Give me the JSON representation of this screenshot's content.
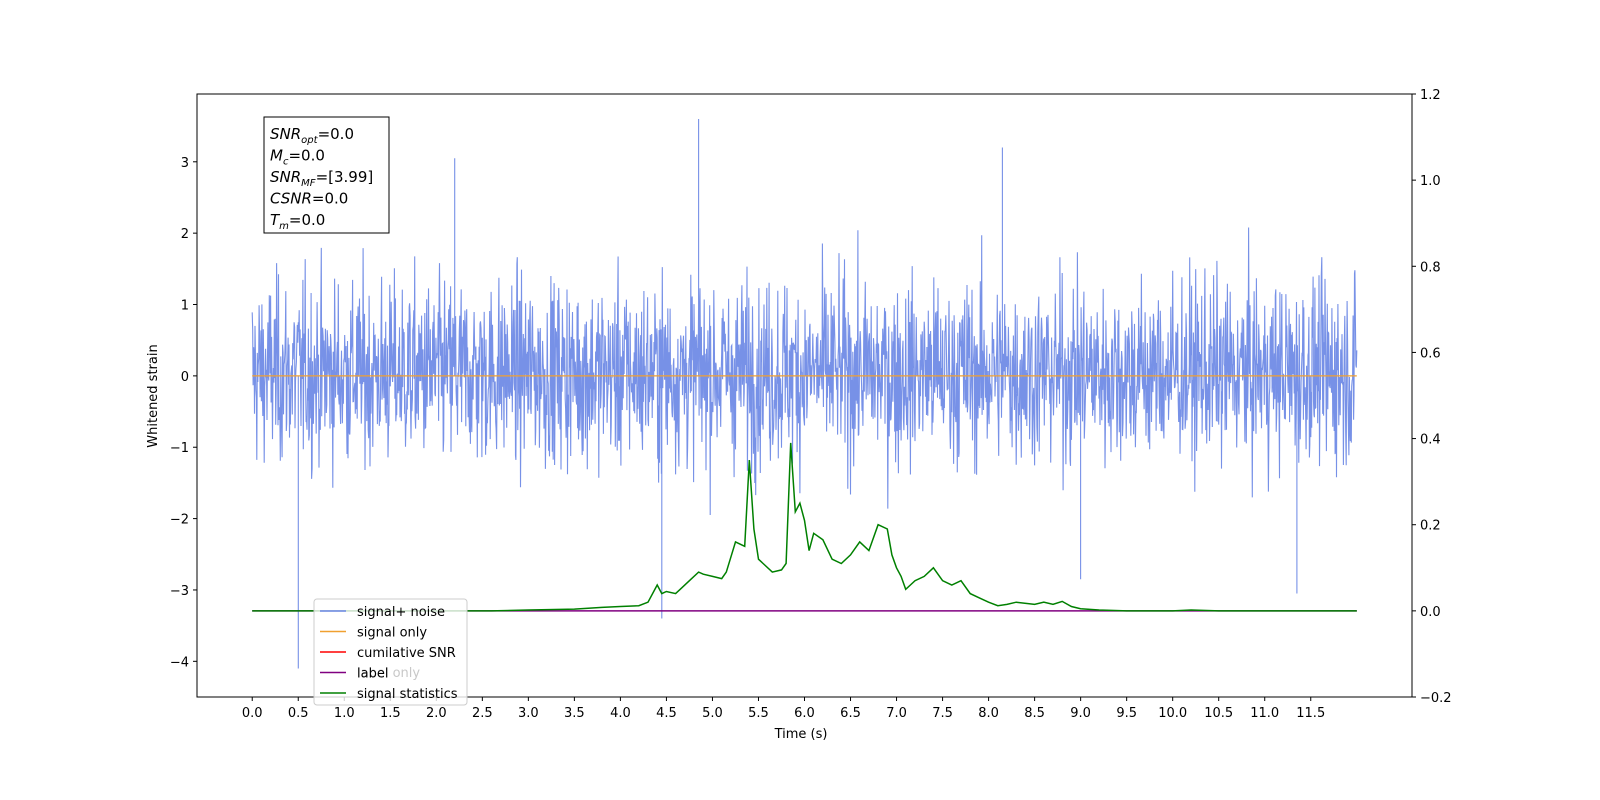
{
  "chart_data": {
    "type": "line",
    "xlabel": "Time (s)",
    "ylabel": "Whitened strain",
    "xlim": [
      -0.6,
      12.6
    ],
    "ylim": [
      -4.5,
      3.95
    ],
    "y2lim": [
      -0.2,
      1.2
    ],
    "xticks": [
      "0.0",
      "0.5",
      "1.0",
      "1.5",
      "2.0",
      "2.5",
      "3.0",
      "3.5",
      "4.0",
      "4.5",
      "5.0",
      "5.5",
      "6.0",
      "6.5",
      "7.0",
      "7.5",
      "8.0",
      "8.5",
      "9.0",
      "9.5",
      "10.0",
      "10.5",
      "11.0",
      "11.5"
    ],
    "yticks": [
      "−4",
      "−3",
      "−2",
      "−1",
      "0",
      "1",
      "2",
      "3"
    ],
    "y2ticks": [
      "−0.2",
      "0.0",
      "0.2",
      "0.4",
      "0.6",
      "0.8",
      "1.0",
      "1.2"
    ],
    "grid": false,
    "legend_position": "lower-left",
    "colors": {
      "signal_noise": "#6b88e5",
      "signal_only": "#f0a030",
      "cumulative_snr": "#ff0000",
      "label": "#800080",
      "signal_statistics": "#008000"
    },
    "noise_trace": {
      "x_range": [
        0.0,
        12.0
      ],
      "typical_range": [
        -1.4,
        1.6
      ],
      "extremes": [
        {
          "x": 0.5,
          "y": -4.1
        },
        {
          "x": 4.45,
          "y": -3.4
        },
        {
          "x": 4.85,
          "y": 3.6
        },
        {
          "x": 2.2,
          "y": 3.05
        },
        {
          "x": 8.15,
          "y": 3.2
        },
        {
          "x": 11.35,
          "y": -3.05
        },
        {
          "x": 9.0,
          "y": -2.85
        }
      ]
    },
    "series": [
      {
        "name": "signal+ noise",
        "kind": "noise_trace"
      },
      {
        "name": "signal only",
        "x": [
          0.0,
          12.0
        ],
        "y": [
          0.0,
          0.0
        ]
      },
      {
        "name": "cumilative SNR",
        "x": [],
        "y": []
      },
      {
        "name": "label",
        "axis": "right",
        "x": [
          0.0,
          12.0
        ],
        "y": [
          0.0,
          0.0
        ]
      },
      {
        "name": "signal statistics",
        "axis": "right",
        "x": [
          0.0,
          2.6,
          3.0,
          3.5,
          3.8,
          4.0,
          4.2,
          4.3,
          4.4,
          4.45,
          4.5,
          4.6,
          4.65,
          4.75,
          4.85,
          4.9,
          5.0,
          5.1,
          5.15,
          5.25,
          5.35,
          5.4,
          5.45,
          5.5,
          5.55,
          5.65,
          5.75,
          5.8,
          5.85,
          5.9,
          5.95,
          6.0,
          6.05,
          6.1,
          6.2,
          6.3,
          6.4,
          6.5,
          6.6,
          6.7,
          6.8,
          6.9,
          6.95,
          7.0,
          7.05,
          7.1,
          7.15,
          7.2,
          7.3,
          7.4,
          7.5,
          7.6,
          7.7,
          7.8,
          7.9,
          8.0,
          8.1,
          8.2,
          8.3,
          8.5,
          8.6,
          8.7,
          8.8,
          8.9,
          9.0,
          9.2,
          9.5,
          10.0,
          10.2,
          10.5,
          12.0
        ],
        "y": [
          0.0,
          0.0,
          0.002,
          0.004,
          0.008,
          0.01,
          0.012,
          0.02,
          0.06,
          0.04,
          0.045,
          0.04,
          0.05,
          0.07,
          0.09,
          0.085,
          0.08,
          0.075,
          0.09,
          0.16,
          0.15,
          0.35,
          0.19,
          0.12,
          0.11,
          0.09,
          0.095,
          0.11,
          0.39,
          0.23,
          0.25,
          0.21,
          0.14,
          0.18,
          0.165,
          0.12,
          0.11,
          0.13,
          0.16,
          0.14,
          0.2,
          0.19,
          0.13,
          0.1,
          0.08,
          0.05,
          0.06,
          0.07,
          0.08,
          0.1,
          0.07,
          0.06,
          0.07,
          0.04,
          0.03,
          0.02,
          0.012,
          0.015,
          0.02,
          0.015,
          0.02,
          0.015,
          0.022,
          0.01,
          0.005,
          0.002,
          0.0,
          0.0,
          0.002,
          0.0,
          0.0
        ]
      }
    ],
    "annotation": {
      "lines": [
        {
          "main": "SNR",
          "sub": "opt",
          "value": "=0.0"
        },
        {
          "main": "M",
          "sub": "c",
          "value": "=0.0"
        },
        {
          "main": "SNR",
          "sub": "MF",
          "value": "=[3.99]"
        },
        {
          "main": "CSNR",
          "sub": "",
          "value": "=0.0"
        },
        {
          "main": "T",
          "sub": "m",
          "value": "=0.0"
        }
      ]
    },
    "legend": [
      "signal+ noise",
      "signal only",
      "cumilative SNR",
      "label",
      "signal statistics"
    ],
    "legend_hidden_text": "label only"
  }
}
